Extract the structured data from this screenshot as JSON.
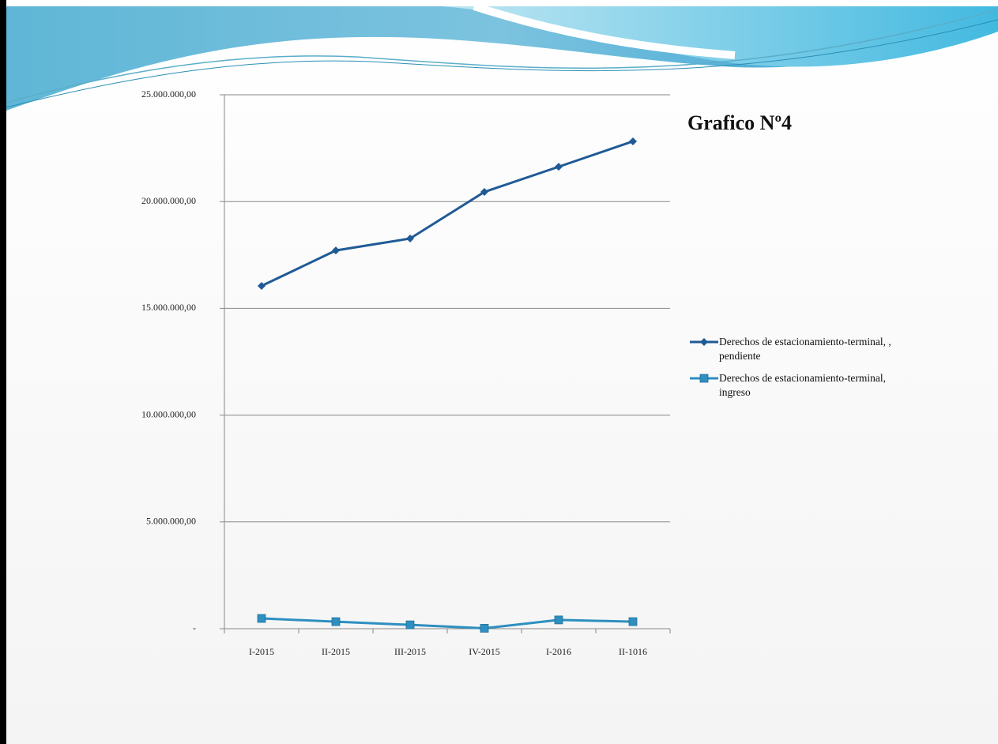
{
  "chart_data": {
    "type": "line",
    "title": "Grafico Nº4",
    "categories": [
      "I-2015",
      "II-2015",
      "III-2015",
      "IV-2015",
      "I-2016",
      "II-1016"
    ],
    "series": [
      {
        "name": "Derechos de estacionamiento-terminal, , pendiente",
        "color": "#1f5a96",
        "marker": "diamond",
        "values": [
          16050000,
          17710000,
          18270000,
          20450000,
          21630000,
          22820000
        ]
      },
      {
        "name": "Derechos de estacionamiento-terminal, ingreso",
        "color": "#2e8fc0",
        "marker": "square",
        "values": [
          480000,
          330000,
          180000,
          20000,
          410000,
          330000
        ]
      }
    ],
    "ylim": [
      0,
      25000000
    ],
    "yticks": [
      {
        "value": 0,
        "label": "-"
      },
      {
        "value": 5000000,
        "label": "5.000.000,00"
      },
      {
        "value": 10000000,
        "label": "10.000.000,00"
      },
      {
        "value": 15000000,
        "label": "15.000.000,00"
      },
      {
        "value": 20000000,
        "label": "20.000.000,00"
      },
      {
        "value": 25000000,
        "label": "25.000.000,00"
      }
    ],
    "grid": true,
    "legend": "right"
  }
}
